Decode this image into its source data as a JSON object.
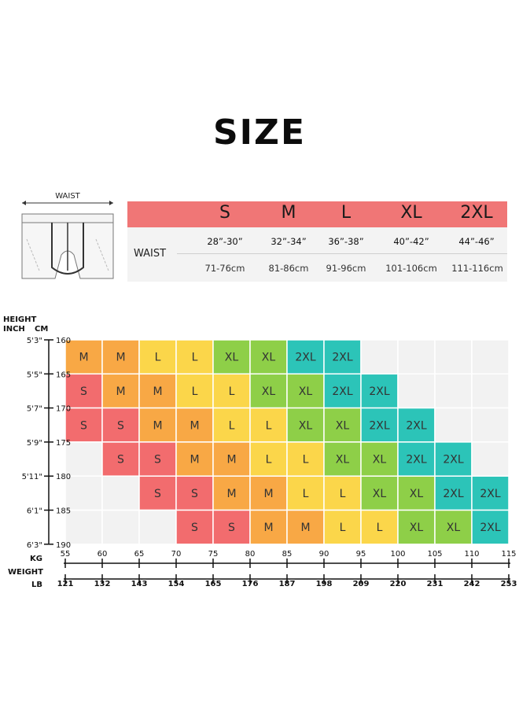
{
  "title": "SIZE",
  "waist_diagram": {
    "caption": "WAIST"
  },
  "size_table": {
    "row_label": "WAIST",
    "sizes": [
      "S",
      "M",
      "L",
      "XL",
      "2XL"
    ],
    "inch": [
      "28”-30”",
      "32”-34”",
      "36”-38”",
      "40”-42”",
      "44”-46”"
    ],
    "cm": [
      "71-76cm",
      "81-86cm",
      "91-96cm",
      "101-106cm",
      "111-116cm"
    ],
    "header_color": "#f07676"
  },
  "chart_data": {
    "type": "heatmap",
    "title": "",
    "y_axis": {
      "label": "HEIGHT",
      "units": [
        "INCH",
        "CM"
      ],
      "inch": [
        "5'3\"",
        "5'5\"",
        "5'7\"",
        "5'9\"",
        "5'11\"",
        "6'1\"",
        "6'3\""
      ],
      "cm": [
        160,
        165,
        170,
        175,
        180,
        185,
        190
      ]
    },
    "x_axis": {
      "label": "WEIGHT",
      "units": [
        "KG",
        "LB"
      ],
      "kg": [
        55,
        60,
        65,
        70,
        75,
        80,
        85,
        90,
        95,
        100,
        105,
        110,
        115
      ],
      "lb": [
        121,
        132,
        143,
        154,
        165,
        176,
        187,
        198,
        209,
        220,
        231,
        242,
        253
      ]
    },
    "grid": [
      [
        "M",
        "M",
        "L",
        "L",
        "XL",
        "XL",
        "2XL",
        "2XL",
        "",
        "",
        "",
        ""
      ],
      [
        "S",
        "M",
        "M",
        "L",
        "L",
        "XL",
        "XL",
        "2XL",
        "2XL",
        "",
        "",
        ""
      ],
      [
        "S",
        "S",
        "M",
        "M",
        "L",
        "L",
        "XL",
        "XL",
        "2XL",
        "2XL",
        "",
        ""
      ],
      [
        "",
        "S",
        "S",
        "M",
        "M",
        "L",
        "L",
        "XL",
        "XL",
        "2XL",
        "2XL",
        ""
      ],
      [
        "",
        "",
        "S",
        "S",
        "M",
        "M",
        "L",
        "L",
        "XL",
        "XL",
        "2XL",
        "2XL"
      ],
      [
        "",
        "",
        "",
        "S",
        "S",
        "M",
        "M",
        "L",
        "L",
        "XL",
        "XL",
        "2XL"
      ]
    ],
    "colors": {
      "S": "#f26c6e",
      "M": "#f8a845",
      "L": "#fbd64a",
      "XL": "#8ecf48",
      "2XL": "#2cc4b8",
      "": "#f2f2f2"
    }
  }
}
